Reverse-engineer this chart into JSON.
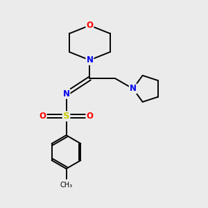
{
  "bg_color": "#ebebeb",
  "atom_colors": {
    "C": "#000000",
    "N": "#0000ee",
    "O": "#ff0000",
    "S": "#cccc00"
  },
  "bond_color": "#000000",
  "line_width": 1.4,
  "figsize": [
    3.0,
    3.0
  ],
  "dpi": 100
}
